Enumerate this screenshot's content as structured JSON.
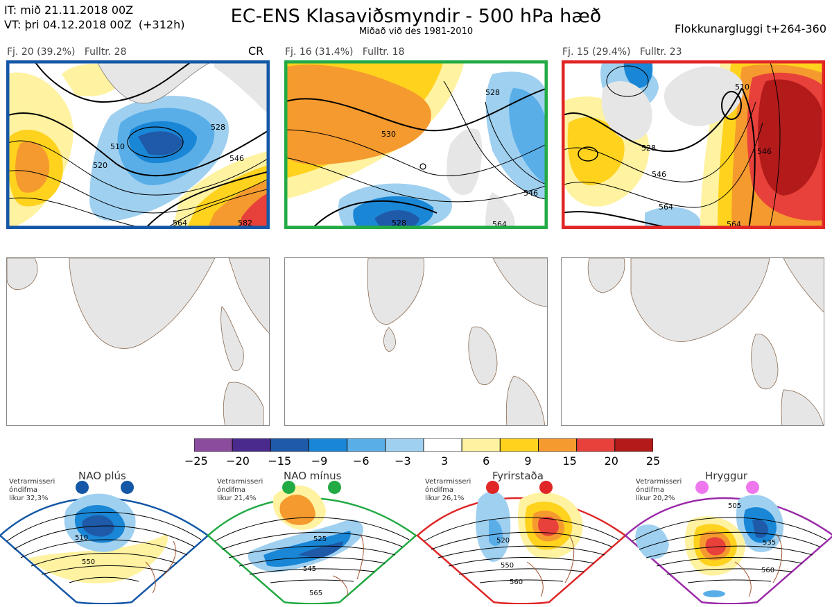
{
  "header": {
    "it": "IT: mið 21.11.2018 00Z",
    "vt": "VT: þri 04.12.2018 00Z  (+312h)",
    "title": "EC-ENS Klasaviðsmyndir - 500 hPa hæð",
    "subtitle": "Miðað við des 1981-2010",
    "window": "Flokkunargluggi t+264-360"
  },
  "clusters": [
    {
      "label": "Fj. 20 (39.2%)",
      "member": "Fulltr. 28",
      "tag": "CR",
      "frame_color": "#1457a6",
      "contour_labels": [
        "510",
        "528",
        "520",
        "546",
        "564",
        "582"
      ]
    },
    {
      "label": "Fj. 16 (31.4%)",
      "member": "Fulltr. 18",
      "tag": "",
      "frame_color": "#22aa44",
      "contour_labels": [
        "528",
        "530",
        "528",
        "546",
        "564"
      ]
    },
    {
      "label": "Fj. 15 (29.4%)",
      "member": "Fulltr. 23",
      "tag": "",
      "frame_color": "#e02626",
      "contour_labels": [
        "510",
        "528",
        "546",
        "564",
        "564",
        "546"
      ]
    }
  ],
  "colorbar": {
    "ticks": [
      "−25",
      "−20",
      "−15",
      "−9",
      "−6",
      "−3",
      "3",
      "6",
      "9",
      "15",
      "20",
      "25"
    ],
    "colors": [
      "#8b4c9e",
      "#4a2a8c",
      "#1f5aa8",
      "#1a86d6",
      "#5aaee8",
      "#9fd0f0",
      "#ffffff",
      "#fff2a0",
      "#ffd21e",
      "#f59a2e",
      "#e8403a",
      "#b31a1a"
    ]
  },
  "regimes": [
    {
      "name": "NAO plús",
      "note": "Vetrarmisseri\nóndifma\nlíkur 32,3%",
      "color": "#1457a6",
      "contours": [
        "510",
        "550"
      ]
    },
    {
      "name": "NAO mínus",
      "note": "Vetrarmisseri\nóndifma\nlíkur 21,4%",
      "color": "#22aa44",
      "contours": [
        "525",
        "545",
        "565"
      ]
    },
    {
      "name": "Fyrirstaða",
      "note": "Vetrarmisseri\nóndifma\nlíkur 26,1%",
      "color": "#e02626",
      "contours": [
        "520",
        "550",
        "560"
      ]
    },
    {
      "name": "Hryggur",
      "note": "Vetrarmisseri\nóndifma\nlíkur 20,2%",
      "color": "#9a2aa8",
      "contours": [
        "505",
        "535",
        "560"
      ]
    }
  ]
}
